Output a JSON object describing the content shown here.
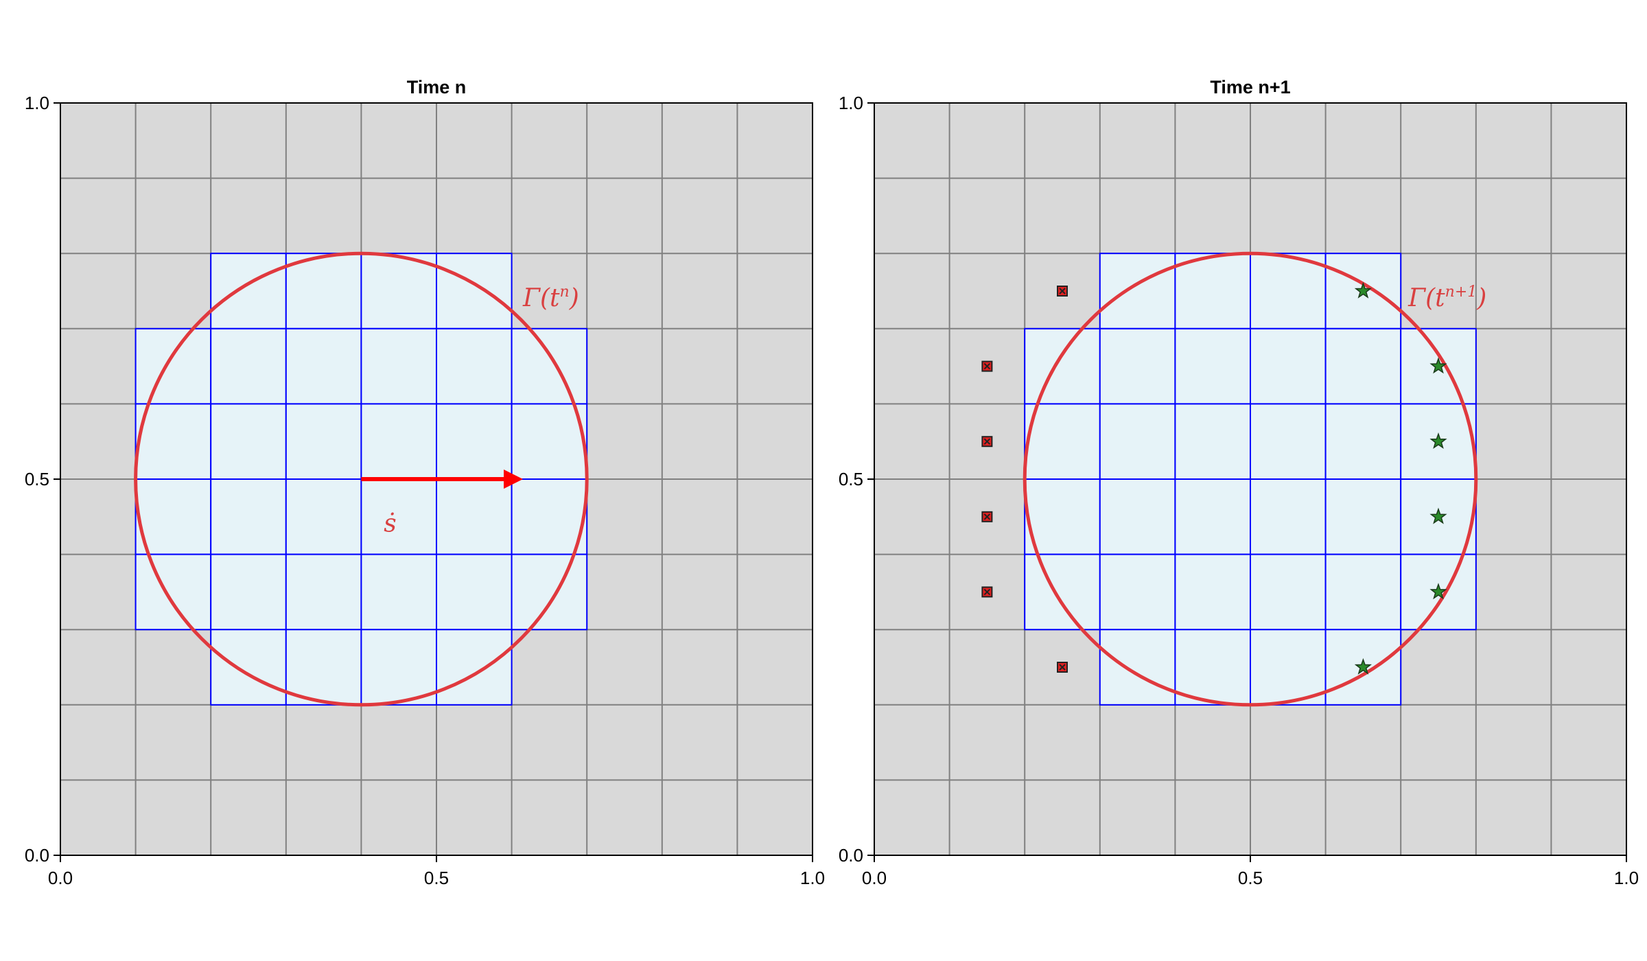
{
  "figure": {
    "panels": [
      {
        "id": "time-n",
        "title": "Time n",
        "x_ticks": [
          "0.0",
          "0.5",
          "1.0"
        ],
        "y_ticks": [
          "0.0",
          "0.5",
          "1.0"
        ],
        "xlim": [
          0,
          1
        ],
        "ylim": [
          0,
          1
        ],
        "grid_step": 0.1,
        "circle": {
          "center": [
            0.4,
            0.5
          ],
          "radius": 0.3,
          "label": "Γ(t",
          "label_sup": "n",
          "label_close": ")",
          "label_pos": [
            0.615,
            0.73
          ]
        },
        "cut_cells": [
          [
            0.2,
            0.7
          ],
          [
            0.3,
            0.7
          ],
          [
            0.4,
            0.7
          ],
          [
            0.5,
            0.7
          ],
          [
            0.1,
            0.6
          ],
          [
            0.2,
            0.6
          ],
          [
            0.3,
            0.6
          ],
          [
            0.4,
            0.6
          ],
          [
            0.5,
            0.6
          ],
          [
            0.6,
            0.6
          ],
          [
            0.1,
            0.5
          ],
          [
            0.2,
            0.5
          ],
          [
            0.3,
            0.5
          ],
          [
            0.4,
            0.5
          ],
          [
            0.5,
            0.5
          ],
          [
            0.6,
            0.5
          ],
          [
            0.1,
            0.4
          ],
          [
            0.2,
            0.4
          ],
          [
            0.3,
            0.4
          ],
          [
            0.4,
            0.4
          ],
          [
            0.5,
            0.4
          ],
          [
            0.6,
            0.4
          ],
          [
            0.1,
            0.3
          ],
          [
            0.2,
            0.3
          ],
          [
            0.3,
            0.3
          ],
          [
            0.4,
            0.3
          ],
          [
            0.5,
            0.3
          ],
          [
            0.6,
            0.3
          ],
          [
            0.2,
            0.2
          ],
          [
            0.3,
            0.2
          ],
          [
            0.4,
            0.2
          ],
          [
            0.5,
            0.2
          ]
        ],
        "arrow": {
          "from": [
            0.4,
            0.5
          ],
          "to": [
            0.615,
            0.5
          ],
          "label": "ṡ",
          "label_pos": [
            0.43,
            0.43
          ]
        },
        "dead_cells": [],
        "fresh_cells": []
      },
      {
        "id": "time-n1",
        "title": "Time n+1",
        "x_ticks": [
          "0.0",
          "0.5",
          "1.0"
        ],
        "y_ticks": [
          "0.0",
          "0.5",
          "1.0"
        ],
        "xlim": [
          0,
          1
        ],
        "ylim": [
          0,
          1
        ],
        "grid_step": 0.1,
        "circle": {
          "center": [
            0.5,
            0.5
          ],
          "radius": 0.3,
          "label": "Γ(t",
          "label_sup": "n+1",
          "label_close": ")",
          "label_pos": [
            0.71,
            0.73
          ]
        },
        "cut_cells": [
          [
            0.3,
            0.7
          ],
          [
            0.4,
            0.7
          ],
          [
            0.5,
            0.7
          ],
          [
            0.6,
            0.7
          ],
          [
            0.2,
            0.6
          ],
          [
            0.3,
            0.6
          ],
          [
            0.4,
            0.6
          ],
          [
            0.5,
            0.6
          ],
          [
            0.6,
            0.6
          ],
          [
            0.7,
            0.6
          ],
          [
            0.2,
            0.5
          ],
          [
            0.3,
            0.5
          ],
          [
            0.4,
            0.5
          ],
          [
            0.5,
            0.5
          ],
          [
            0.6,
            0.5
          ],
          [
            0.7,
            0.5
          ],
          [
            0.2,
            0.4
          ],
          [
            0.3,
            0.4
          ],
          [
            0.4,
            0.4
          ],
          [
            0.5,
            0.4
          ],
          [
            0.6,
            0.4
          ],
          [
            0.7,
            0.4
          ],
          [
            0.2,
            0.3
          ],
          [
            0.3,
            0.3
          ],
          [
            0.4,
            0.3
          ],
          [
            0.5,
            0.3
          ],
          [
            0.6,
            0.3
          ],
          [
            0.7,
            0.3
          ],
          [
            0.3,
            0.2
          ],
          [
            0.4,
            0.2
          ],
          [
            0.5,
            0.2
          ],
          [
            0.6,
            0.2
          ]
        ],
        "arrow": null,
        "dead_cells": [
          [
            0.25,
            0.75
          ],
          [
            0.15,
            0.65
          ],
          [
            0.15,
            0.55
          ],
          [
            0.15,
            0.45
          ],
          [
            0.15,
            0.35
          ],
          [
            0.25,
            0.25
          ]
        ],
        "fresh_cells": [
          [
            0.65,
            0.75
          ],
          [
            0.75,
            0.65
          ],
          [
            0.75,
            0.55
          ],
          [
            0.75,
            0.45
          ],
          [
            0.75,
            0.35
          ],
          [
            0.65,
            0.25
          ]
        ]
      }
    ],
    "colors": {
      "background_cell": "#d9d9d9",
      "background_grid": "#808080",
      "cut_cell_fill": "#e6f3f8",
      "cut_cell_stroke": "#0000ff",
      "interface": "#e0393e",
      "arrow": "#ff0000",
      "dead_marker": "#e02020",
      "fresh_marker": "#2a8a2a"
    }
  }
}
